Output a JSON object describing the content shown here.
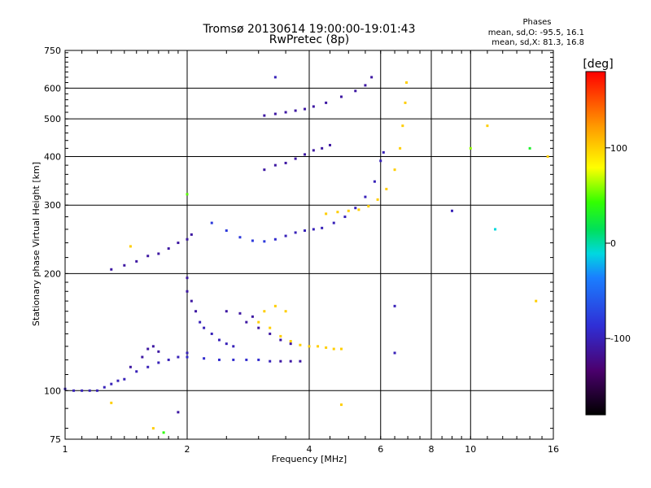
{
  "chart_data": {
    "type": "scatter",
    "title": "Tromsø 20130614 19:00:00-19:01:43",
    "subtitle": "RwPretec (8p)",
    "xlabel": "Frequency [MHz]",
    "ylabel": "Stationary phase Virtual Height [km]",
    "x_scale": "log",
    "y_scale": "log",
    "xlim": [
      1,
      16
    ],
    "ylim": [
      75,
      750
    ],
    "x_ticks": [
      1,
      2,
      4,
      6,
      8,
      10,
      16
    ],
    "y_ticks": [
      75,
      100,
      200,
      300,
      400,
      500,
      600,
      750
    ],
    "grid": true,
    "phases_text": {
      "heading": "Phases",
      "line1": "mean, sd,O: -95.5, 16.1",
      "line2": "mean, sd,X:  81.3, 16.8"
    },
    "colorbar": {
      "label": "[deg]",
      "range": [
        -180,
        180
      ],
      "ticks": [
        100,
        0,
        -100
      ]
    },
    "series": [
      {
        "points": [
          [
            1.0,
            101,
            -100
          ],
          [
            1.05,
            100,
            -100
          ],
          [
            1.1,
            100,
            -100
          ],
          [
            1.15,
            100,
            -100
          ],
          [
            1.2,
            100,
            -100
          ],
          [
            1.25,
            102,
            -100
          ],
          [
            1.3,
            104,
            -100
          ],
          [
            1.35,
            106,
            -100
          ],
          [
            1.4,
            107,
            -100
          ],
          [
            1.5,
            112,
            -100
          ],
          [
            1.6,
            115,
            -100
          ],
          [
            1.7,
            118,
            -100
          ],
          [
            1.8,
            120,
            -100
          ],
          [
            1.9,
            122,
            -100
          ],
          [
            2.0,
            125,
            -100
          ],
          [
            1.45,
            115,
            -110
          ],
          [
            1.55,
            122,
            -110
          ],
          [
            1.6,
            128,
            -110
          ],
          [
            1.65,
            130,
            -110
          ],
          [
            1.7,
            126,
            -110
          ]
        ]
      },
      {
        "points": [
          [
            2.0,
            122,
            -90
          ],
          [
            2.2,
            121,
            -90
          ],
          [
            2.4,
            120,
            -90
          ],
          [
            2.6,
            120,
            -90
          ],
          [
            2.8,
            120,
            -90
          ],
          [
            3.0,
            120,
            -90
          ],
          [
            3.2,
            119,
            -100
          ],
          [
            3.4,
            119,
            -110
          ],
          [
            3.6,
            119,
            -110
          ],
          [
            3.8,
            119,
            -110
          ]
        ]
      },
      {
        "points": [
          [
            2.0,
            195,
            -110
          ],
          [
            2.0,
            180,
            -110
          ],
          [
            2.05,
            170,
            -110
          ],
          [
            2.1,
            160,
            -110
          ],
          [
            2.15,
            150,
            -100
          ],
          [
            2.2,
            145,
            -100
          ],
          [
            2.3,
            140,
            -100
          ],
          [
            2.4,
            135,
            -100
          ],
          [
            2.5,
            132,
            -100
          ],
          [
            2.6,
            130,
            -100
          ],
          [
            2.8,
            150,
            -110
          ],
          [
            3.0,
            145,
            -110
          ],
          [
            3.2,
            140,
            -110
          ],
          [
            3.4,
            135,
            -110
          ],
          [
            3.6,
            132,
            -110
          ],
          [
            2.5,
            160,
            -110
          ],
          [
            2.7,
            158,
            -110
          ],
          [
            2.9,
            155,
            -110
          ]
        ]
      },
      {
        "points": [
          [
            3.0,
            150,
            100
          ],
          [
            3.2,
            145,
            100
          ],
          [
            3.4,
            138,
            100
          ],
          [
            3.6,
            134,
            100
          ],
          [
            3.8,
            131,
            100
          ],
          [
            4.0,
            130,
            100
          ],
          [
            4.2,
            130,
            100
          ],
          [
            4.4,
            129,
            100
          ],
          [
            4.6,
            128,
            100
          ],
          [
            4.8,
            128,
            100
          ],
          [
            3.1,
            160,
            100
          ],
          [
            3.3,
            165,
            100
          ],
          [
            3.5,
            160,
            100
          ]
        ]
      },
      {
        "points": [
          [
            1.3,
            205,
            -110
          ],
          [
            1.4,
            210,
            -110
          ],
          [
            1.5,
            215,
            -110
          ],
          [
            1.6,
            222,
            -110
          ],
          [
            1.7,
            225,
            -110
          ],
          [
            1.8,
            232,
            -110
          ],
          [
            1.9,
            240,
            -110
          ],
          [
            2.0,
            245,
            -110
          ],
          [
            2.05,
            252,
            -110
          ]
        ]
      },
      {
        "points": [
          [
            2.3,
            270,
            -80
          ],
          [
            2.5,
            258,
            -80
          ],
          [
            2.7,
            248,
            -80
          ],
          [
            2.9,
            243,
            -80
          ],
          [
            3.1,
            242,
            -80
          ],
          [
            3.3,
            245,
            -90
          ],
          [
            3.5,
            250,
            -100
          ],
          [
            3.7,
            255,
            -100
          ],
          [
            3.9,
            258,
            -100
          ],
          [
            4.1,
            260,
            -100
          ],
          [
            4.3,
            262,
            -100
          ],
          [
            4.6,
            270,
            -100
          ],
          [
            4.9,
            280,
            -100
          ],
          [
            5.2,
            295,
            -100
          ],
          [
            5.5,
            315,
            -100
          ],
          [
            5.8,
            345,
            -100
          ],
          [
            6.0,
            390,
            -100
          ],
          [
            6.1,
            410,
            -100
          ]
        ]
      },
      {
        "points": [
          [
            4.4,
            285,
            100
          ],
          [
            4.7,
            288,
            100
          ],
          [
            5.0,
            290,
            100
          ],
          [
            5.3,
            292,
            100
          ],
          [
            5.6,
            298,
            100
          ],
          [
            5.9,
            310,
            100
          ],
          [
            6.2,
            330,
            100
          ],
          [
            6.5,
            370,
            100
          ],
          [
            6.7,
            420,
            100
          ],
          [
            6.8,
            480,
            100
          ],
          [
            6.9,
            550,
            100
          ],
          [
            6.95,
            620,
            100
          ]
        ]
      },
      {
        "points": [
          [
            3.1,
            370,
            -110
          ],
          [
            3.3,
            380,
            -110
          ],
          [
            3.5,
            385,
            -110
          ],
          [
            3.7,
            395,
            -110
          ],
          [
            3.9,
            405,
            -110
          ],
          [
            4.1,
            415,
            -110
          ],
          [
            4.3,
            420,
            -110
          ],
          [
            4.5,
            428,
            -110
          ]
        ]
      },
      {
        "points": [
          [
            3.1,
            510,
            -110
          ],
          [
            3.3,
            515,
            -110
          ],
          [
            3.5,
            520,
            -110
          ],
          [
            3.7,
            525,
            -110
          ],
          [
            3.9,
            530,
            -110
          ],
          [
            4.1,
            538,
            -110
          ],
          [
            4.4,
            550,
            -110
          ],
          [
            4.8,
            570,
            -110
          ],
          [
            5.2,
            590,
            -110
          ],
          [
            5.5,
            610,
            -110
          ],
          [
            5.7,
            640,
            -110
          ]
        ]
      },
      {
        "points": [
          [
            1.45,
            235,
            100
          ],
          [
            2.0,
            320,
            50
          ],
          [
            3.3,
            640,
            -100
          ],
          [
            10.0,
            420,
            60
          ],
          [
            11.0,
            480,
            100
          ],
          [
            11.5,
            260,
            -10
          ],
          [
            14.0,
            420,
            30
          ],
          [
            14.5,
            170,
            100
          ],
          [
            15.5,
            400,
            100
          ],
          [
            9.0,
            290,
            -100
          ],
          [
            6.5,
            165,
            -100
          ],
          [
            6.5,
            125,
            -100
          ],
          [
            1.9,
            88,
            -110
          ],
          [
            1.65,
            80,
            100
          ],
          [
            1.75,
            78,
            40
          ],
          [
            1.3,
            93,
            100
          ],
          [
            4.8,
            92,
            100
          ]
        ]
      }
    ]
  }
}
